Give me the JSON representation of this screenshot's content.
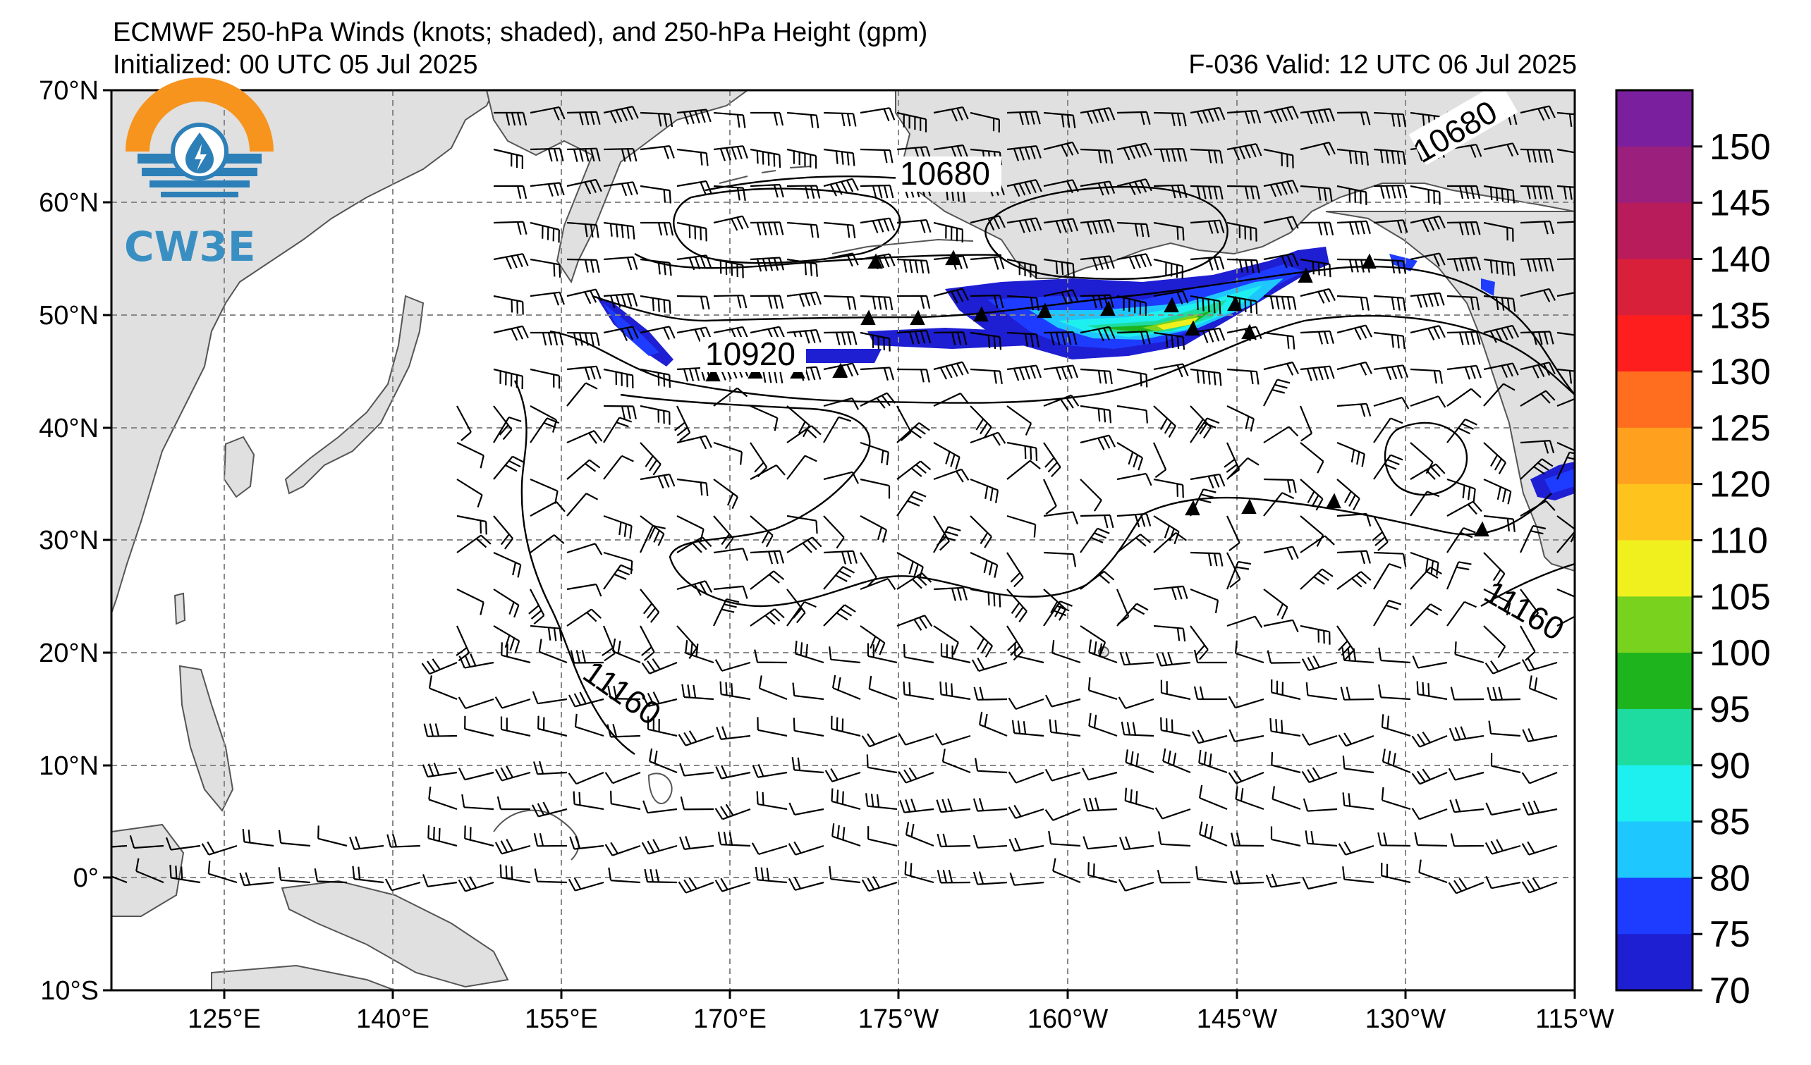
{
  "title": {
    "line1": "ECMWF 250-hPa Winds (knots; shaded), and 250-hPa Height (gpm)",
    "initialized": "Initialized: 00 UTC 05 Jul 2025",
    "valid": "F-036  Valid: 12 UTC 06 Jul 2025"
  },
  "logo": {
    "text": "CW3E",
    "icon": "water-lightning-logo-icon",
    "colors": {
      "orange": "#f7941d",
      "blue": "#2d7fb8"
    }
  },
  "axes": {
    "lat_labels": [
      "70°N",
      "60°N",
      "50°N",
      "40°N",
      "30°N",
      "20°N",
      "10°N",
      "0°",
      "10°S"
    ],
    "lon_labels": [
      "125°E",
      "140°E",
      "155°E",
      "170°E",
      "175°W",
      "160°W",
      "145°W",
      "130°W",
      "115°W"
    ]
  },
  "contour_labels": [
    {
      "text": "10680"
    },
    {
      "text": "10680"
    },
    {
      "text": "10920"
    },
    {
      "text": "11160"
    },
    {
      "text": "11160"
    }
  ],
  "colorbar": {
    "ticks": [
      "150",
      "145",
      "140",
      "135",
      "130",
      "125",
      "120",
      "110",
      "105",
      "100",
      "95",
      "90",
      "85",
      "80",
      "75",
      "70"
    ],
    "colors": [
      "#7a1f9e",
      "#9b1f7c",
      "#b81c5a",
      "#d8203b",
      "#ff1e1e",
      "#ff6e1e",
      "#ffa01e",
      "#ffc31e",
      "#f0f01e",
      "#78d21e",
      "#1eb41e",
      "#1edca0",
      "#1ef0f0",
      "#1ec8ff",
      "#1e3cff",
      "#1e1ed2"
    ]
  }
}
